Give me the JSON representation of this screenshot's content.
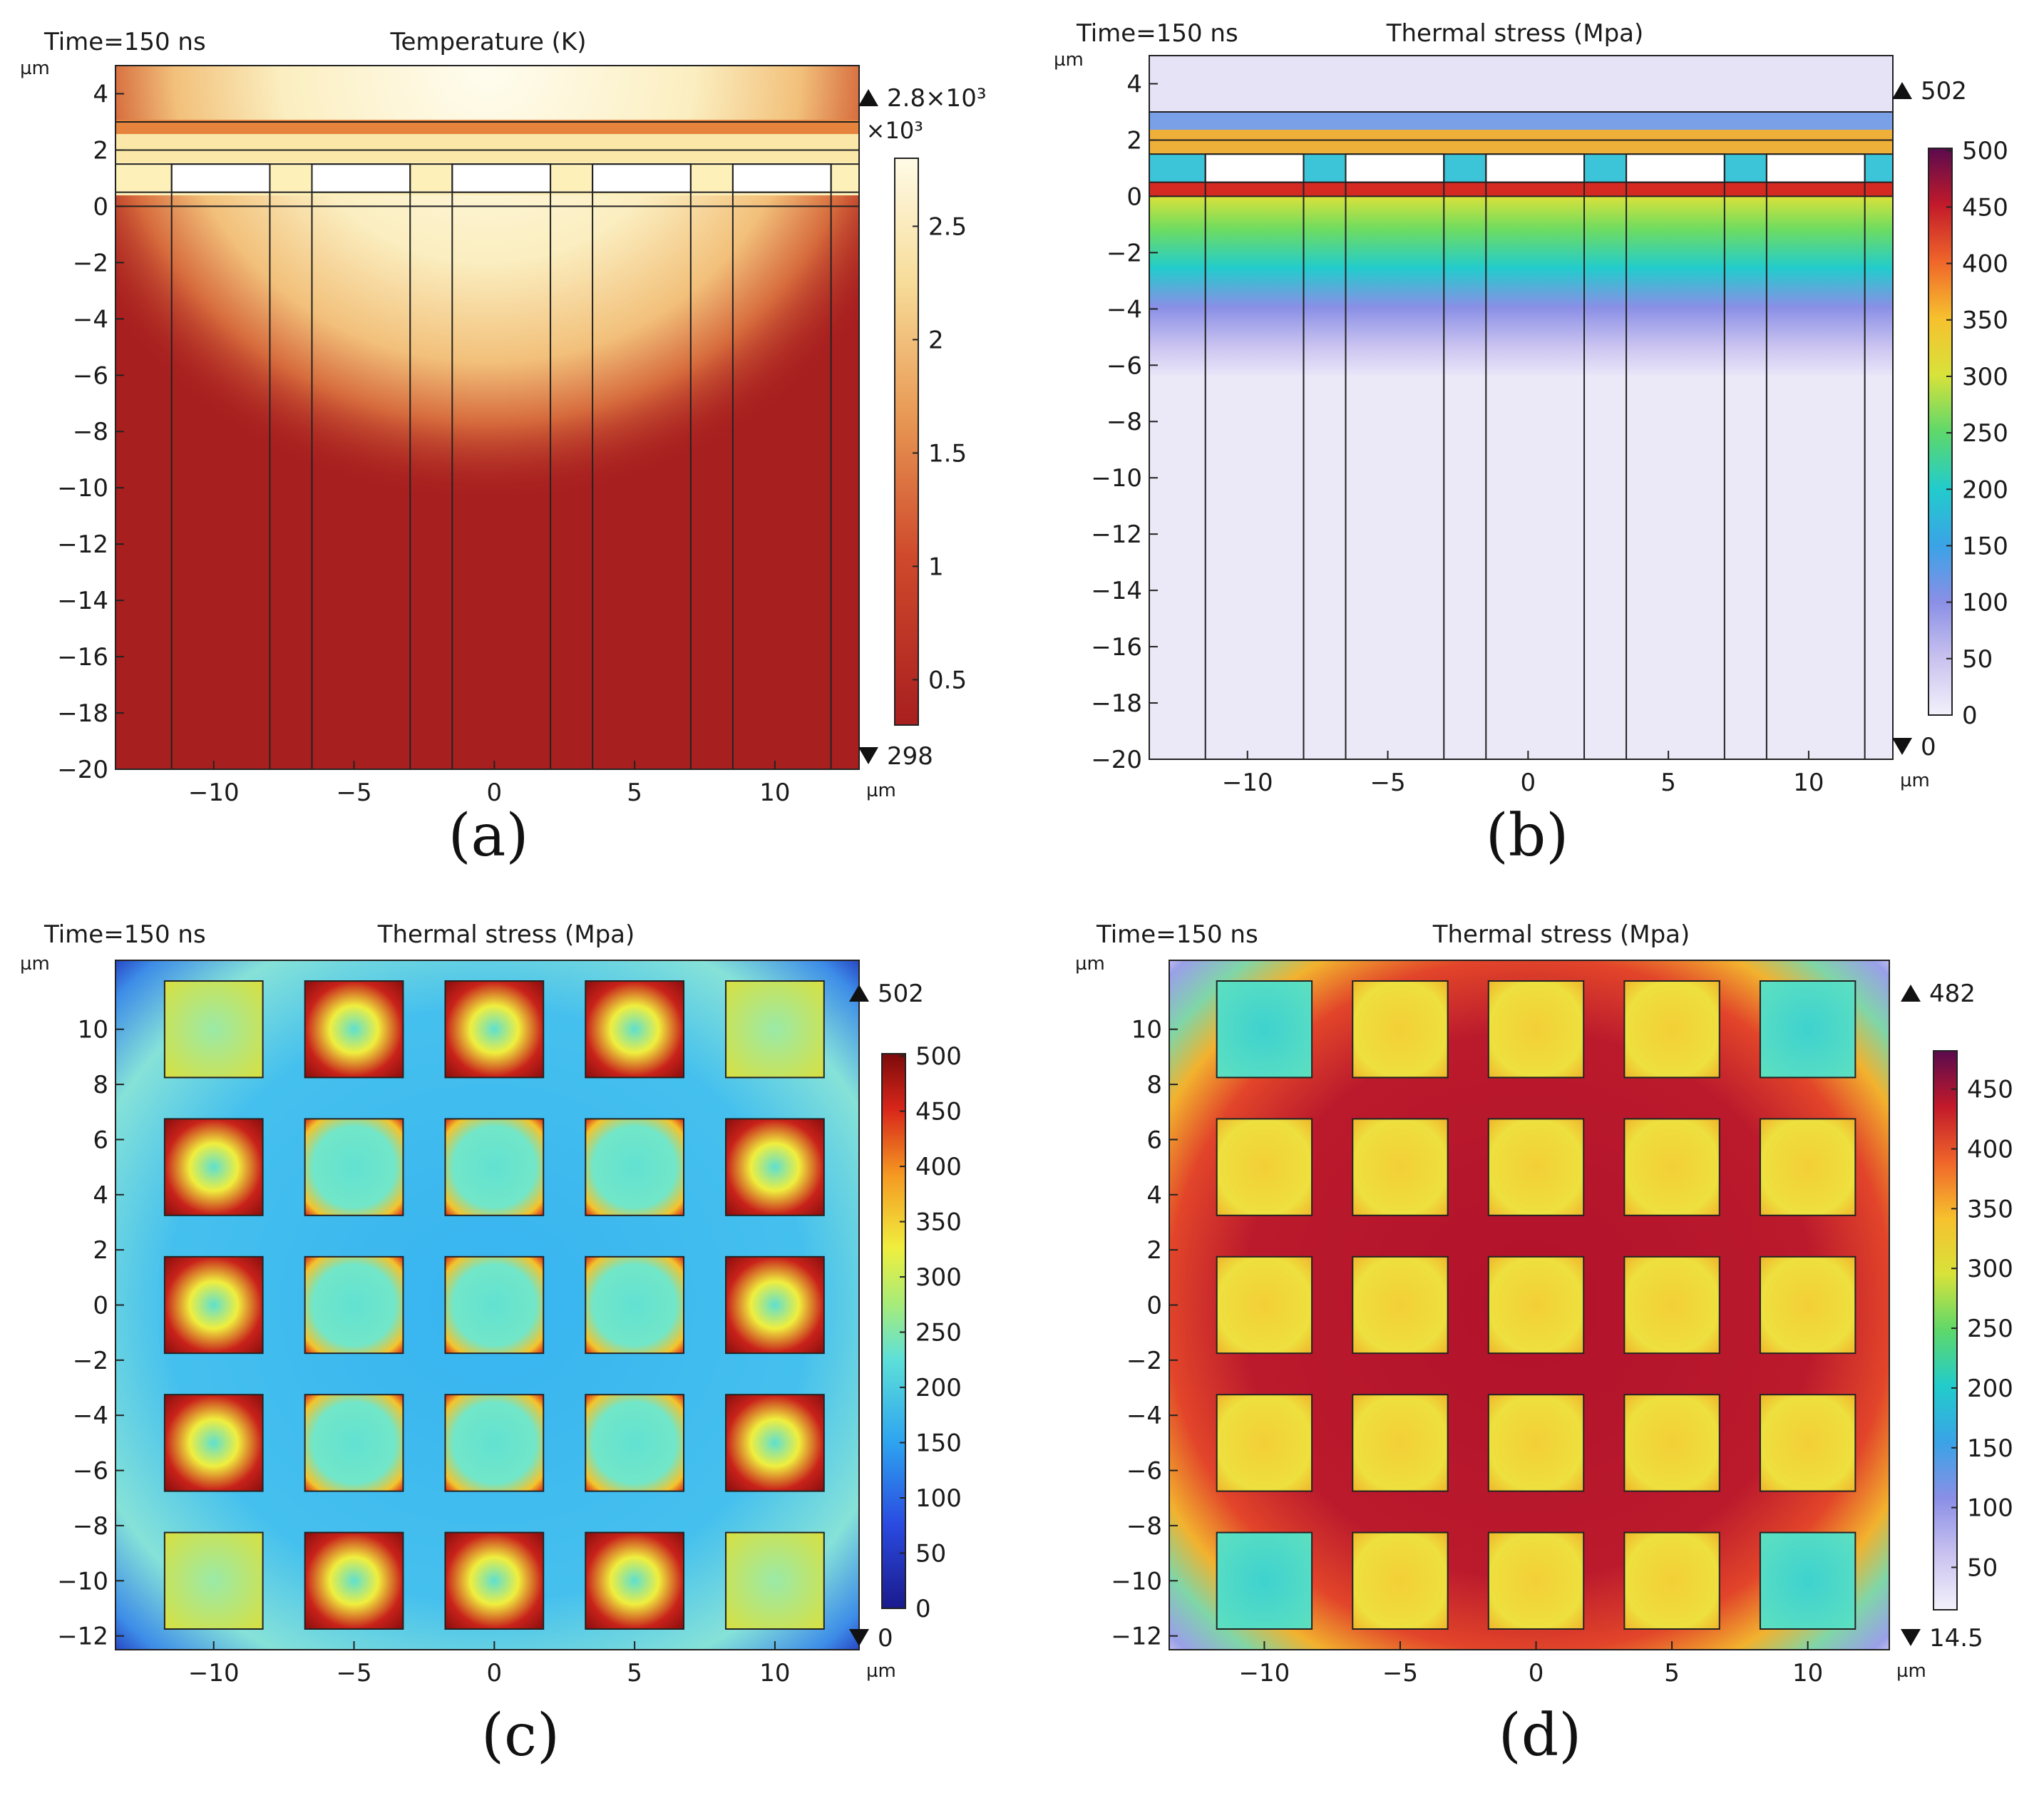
{
  "figure_labels": [
    "(a)",
    "(b)",
    "(c)",
    "(d)"
  ],
  "chart_data": [
    {
      "id": "a",
      "type": "heatmap",
      "view": "cross-section",
      "time": "Time=150 ns",
      "title": "Temperature (K)",
      "unit": "µm",
      "x_unit": "µm",
      "xlim": [
        -13.5,
        13.0
      ],
      "ylim": [
        -20,
        5.0
      ],
      "xticks": [
        -10,
        -5,
        0,
        5,
        10
      ],
      "yticks": [
        4,
        2,
        0,
        -2,
        -4,
        -6,
        -8,
        -10,
        -12,
        -14,
        -16,
        -18,
        -20
      ],
      "colorbar": {
        "colormap": "thermal",
        "ticks": [
          0.5,
          1,
          1.5,
          2,
          2.5
        ],
        "tick_labels": [
          "0.5",
          "1",
          "1.5",
          "2",
          "2.5"
        ],
        "multiplier": "×10³",
        "range": [
          0.3,
          2.8
        ],
        "max_label": "2.8×10³",
        "min_label": "298"
      }
    },
    {
      "id": "b",
      "type": "heatmap",
      "view": "cross-section",
      "time": "Time=150 ns",
      "title": "Thermal stress (Mpa)",
      "unit": "µm",
      "x_unit": "µm",
      "xlim": [
        -13.5,
        13.0
      ],
      "ylim": [
        -20,
        5.0
      ],
      "xticks": [
        -10,
        -5,
        0,
        5,
        10
      ],
      "yticks": [
        4,
        2,
        0,
        -2,
        -4,
        -6,
        -8,
        -10,
        -12,
        -14,
        -16,
        -18,
        -20
      ],
      "colorbar": {
        "colormap": "rainbow-light",
        "ticks": [
          0,
          50,
          100,
          150,
          200,
          250,
          300,
          350,
          400,
          450,
          500
        ],
        "tick_labels": [
          "0",
          "50",
          "100",
          "150",
          "200",
          "250",
          "300",
          "350",
          "400",
          "450",
          "500"
        ],
        "multiplier": "",
        "range": [
          0,
          502
        ],
        "max_label": "502",
        "min_label": "0"
      }
    },
    {
      "id": "c",
      "type": "heatmap",
      "view": "top",
      "time": "Time=150 ns",
      "title": "Thermal stress (Mpa)",
      "unit": "µm",
      "x_unit": "µm",
      "xlim": [
        -13.5,
        13.0
      ],
      "ylim": [
        -12.5,
        12.5
      ],
      "xticks": [
        -10,
        -5,
        0,
        5,
        10
      ],
      "yticks": [
        10,
        8,
        6,
        4,
        2,
        0,
        -2,
        -4,
        -6,
        -8,
        -10,
        -12
      ],
      "colorbar": {
        "colormap": "jet",
        "ticks": [
          0,
          50,
          100,
          150,
          200,
          250,
          300,
          350,
          400,
          450,
          500
        ],
        "tick_labels": [
          "0",
          "50",
          "100",
          "150",
          "200",
          "250",
          "300",
          "350",
          "400",
          "450",
          "500"
        ],
        "multiplier": "",
        "range": [
          0,
          502
        ],
        "max_label": "502",
        "min_label": "0"
      }
    },
    {
      "id": "d",
      "type": "heatmap",
      "view": "top",
      "time": "Time=150 ns",
      "title": "Thermal stress (Mpa)",
      "unit": "µm",
      "x_unit": "µm",
      "xlim": [
        -13.5,
        13.0
      ],
      "ylim": [
        -12.5,
        12.5
      ],
      "xticks": [
        -10,
        -5,
        0,
        5,
        10
      ],
      "yticks": [
        10,
        8,
        6,
        4,
        2,
        0,
        -2,
        -4,
        -6,
        -8,
        -10,
        -12
      ],
      "colorbar": {
        "colormap": "rainbow-light",
        "ticks": [
          50,
          100,
          150,
          200,
          250,
          300,
          350,
          400,
          450
        ],
        "tick_labels": [
          "50",
          "100",
          "150",
          "200",
          "250",
          "300",
          "350",
          "400",
          "450"
        ],
        "multiplier": "",
        "range": [
          14.5,
          482
        ],
        "max_label": "482",
        "min_label": "14.5"
      }
    }
  ]
}
